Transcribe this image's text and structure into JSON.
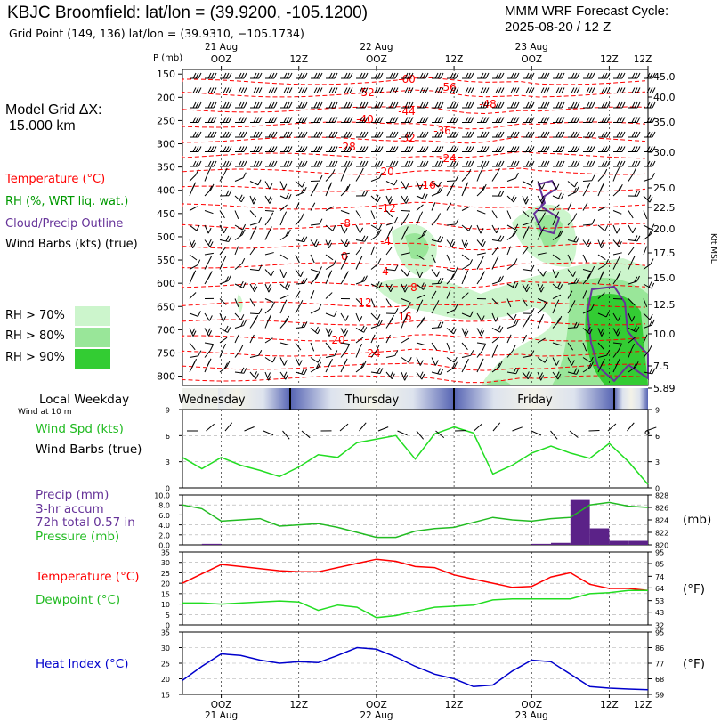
{
  "header": {
    "station": "KBJC Broomfield:  lat/lon = (39.9200, -105.1200)",
    "grid_point": "Grid Point (149, 136) lat/lon = (39.9310, −105.1734)",
    "cycle_line1": "MMM WRF Forecast Cycle:",
    "cycle_line2": "2025-08-20 / 12  Z"
  },
  "grid_dx": {
    "line1": "Model Grid ΔX:",
    "line2": "15.000 km"
  },
  "legend": {
    "temperature": "Temperature (°C)",
    "rh": "RH (%, WRT liq. wat.)",
    "cloud": "Cloud/Precip Outline",
    "wind": "Wind Barbs (kts) (true)",
    "rh70": "RH > 70%",
    "rh80": "RH > 80%",
    "rh90": "RH > 90%"
  },
  "colors": {
    "temperature": "#ff0000",
    "rh_text": "#009900",
    "cloud": "#663399",
    "wind_speed": "#22dd22",
    "pressure": "#22bb22",
    "precip": "#5b2288",
    "heat_index": "#0000cc",
    "rh70": "#ccf5cc",
    "rh80": "#99e699",
    "rh90": "#33cc33"
  },
  "time_axis": {
    "top_dates": [
      "21 Aug",
      "22 Aug",
      "23 Aug"
    ],
    "ticks": [
      "OOZ",
      "12Z",
      "OOZ",
      "12Z",
      "OOZ",
      "12Z"
    ],
    "bottom_dates": [
      "21 Aug",
      "22 Aug",
      "23 Aug"
    ]
  },
  "days": [
    "Wednesday",
    "Thursday",
    "Friday"
  ],
  "panels": {
    "weekday_title": "Local Weekday",
    "wind_note": "Wind at 10 m",
    "wind_spd": "Wind Spd (kts)",
    "wind_barbs": "Wind Barbs (true)",
    "precip": "Precip (mm)",
    "precip_accum": "3-hr accum",
    "precip_total": "72h total 0.57 in",
    "pressure": "Pressure (mb)",
    "pressure_unit": "(mb)",
    "temperature": "Temperature (°C)",
    "dewpoint": "Dewpoint (°C)",
    "temp_unit": "(°F)",
    "heat_index": "Heat Index (°C)",
    "heat_unit": "(°F)"
  },
  "chart_data": [
    {
      "type": "heatmap",
      "name_hint": "time-height cross section",
      "ylabel": "P (mb)",
      "y2label": "Kft MSL",
      "pressure_ticks": [
        150,
        200,
        250,
        300,
        350,
        400,
        450,
        500,
        550,
        600,
        650,
        700,
        750,
        800
      ],
      "height_ticks": [
        "45.0",
        "40.0",
        "35.0",
        "30.0",
        "25.0",
        "22.5",
        "20.0",
        "17.5",
        "15.0",
        "12.5",
        "10.0",
        "7.5",
        "5.89"
      ],
      "temperature_labels": [
        "-60",
        "-56",
        "-52",
        "-48",
        "-44",
        "-40",
        "-36",
        "-32",
        "-28",
        "-24",
        "-20",
        "-16",
        "-12",
        "-8",
        "-4",
        "0",
        "4",
        "8",
        "12",
        "16",
        "20",
        "24"
      ]
    },
    {
      "type": "line",
      "name_hint": "10 m wind speed",
      "ylim": [
        0,
        9
      ],
      "y_ticks": [
        0,
        3,
        6,
        9
      ],
      "x_hours": [
        0,
        3,
        6,
        9,
        12,
        15,
        18,
        21,
        24,
        27,
        30,
        33,
        36,
        39,
        42,
        45,
        48,
        51,
        54,
        57,
        60,
        63,
        66,
        69,
        72
      ],
      "values": [
        3.5,
        2.2,
        3.5,
        2.6,
        2.0,
        1.3,
        2.4,
        3.8,
        3.5,
        5.2,
        5.6,
        6.0,
        3.3,
        6.2,
        7.0,
        6.3,
        1.6,
        2.6,
        4.0,
        4.8,
        4.0,
        3.4,
        5.1,
        3.0,
        0.4
      ]
    },
    {
      "type": "bar",
      "name_hint": "3-hr precip and pressure",
      "precip_ylim": [
        0,
        10
      ],
      "precip_ticks": [
        "0.0",
        "2.0",
        "4.0",
        "6.0",
        "8.0",
        "10.0"
      ],
      "pressure_ylim": [
        820,
        828
      ],
      "pressure_ticks": [
        820,
        822,
        824,
        826,
        828
      ],
      "x_hours": [
        0,
        3,
        6,
        9,
        12,
        15,
        18,
        21,
        24,
        27,
        30,
        33,
        36,
        39,
        42,
        45,
        48,
        51,
        54,
        57,
        60,
        63,
        66,
        69,
        72
      ],
      "precip_mm": [
        0,
        0,
        0.2,
        0,
        0,
        0,
        0,
        0,
        0,
        0,
        0,
        0,
        0,
        0,
        0,
        0,
        0,
        0,
        0,
        0.2,
        0.4,
        9.0,
        3.3,
        0.8,
        0.8
      ],
      "pressure_mb": [
        826.4,
        825.8,
        823.8,
        824.0,
        824.2,
        823.0,
        823.2,
        823.4,
        822.8,
        822.0,
        821.2,
        821.2,
        822.2,
        822.6,
        822.8,
        823.6,
        824.4,
        824.0,
        823.8,
        824.2,
        824.4,
        826.4,
        826.8,
        826.2,
        826.0
      ]
    },
    {
      "type": "line",
      "name_hint": "temperature and dewpoint",
      "ylim": [
        0,
        35
      ],
      "y_ticks": [
        0,
        5,
        10,
        15,
        20,
        25,
        30,
        35
      ],
      "y2_ticks": [
        32,
        43,
        53,
        64,
        74,
        85,
        95
      ],
      "x_hours": [
        0,
        3,
        6,
        9,
        12,
        15,
        18,
        21,
        24,
        27,
        30,
        33,
        36,
        39,
        42,
        45,
        48,
        51,
        54,
        57,
        60,
        63,
        66,
        69,
        72
      ],
      "series": [
        {
          "name": "Temperature",
          "values": [
            20,
            24.5,
            29,
            28,
            27,
            26,
            25.5,
            25.5,
            27.5,
            29.5,
            31.5,
            30.5,
            28,
            27.5,
            24,
            22,
            20,
            18,
            18.5,
            23,
            25,
            19.5,
            17.5,
            17.5,
            16.5
          ]
        },
        {
          "name": "Dewpoint",
          "values": [
            10.5,
            10.5,
            10,
            10.5,
            11,
            11.5,
            11,
            7,
            9.5,
            8.5,
            3.5,
            4.5,
            6.5,
            8.5,
            9,
            9.5,
            12,
            12.5,
            12.5,
            12.5,
            12.5,
            15,
            15.5,
            16.5,
            16.5
          ]
        }
      ]
    },
    {
      "type": "line",
      "name_hint": "heat index",
      "ylim": [
        15,
        35
      ],
      "y_ticks": [
        15,
        20,
        25,
        30,
        35
      ],
      "y2_ticks": [
        59,
        68,
        77,
        86,
        95
      ],
      "x_hours": [
        0,
        3,
        6,
        9,
        12,
        15,
        18,
        21,
        24,
        27,
        30,
        33,
        36,
        39,
        42,
        45,
        48,
        51,
        54,
        57,
        60,
        63,
        66,
        69,
        72
      ],
      "series": [
        {
          "name": "Heat Index",
          "values": [
            19.5,
            24,
            28,
            27.5,
            26,
            25,
            25.5,
            25.2,
            27.5,
            30,
            29.5,
            27,
            24,
            21.5,
            20,
            17.5,
            18,
            22.5,
            26,
            25.5,
            21.5,
            17.5,
            17,
            16.7,
            16.5
          ]
        }
      ]
    }
  ]
}
